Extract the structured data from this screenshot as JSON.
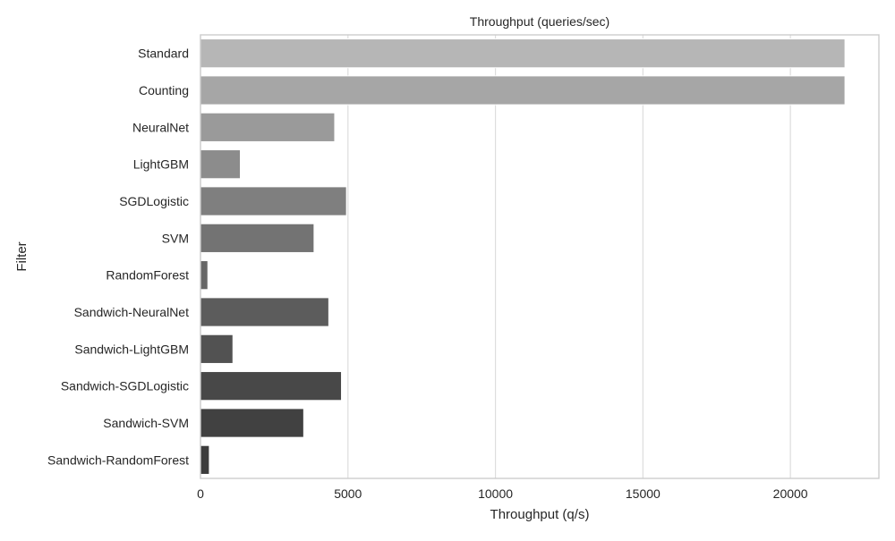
{
  "chart_data": {
    "type": "bar",
    "orientation": "horizontal",
    "title": "Throughput (queries/sec)",
    "xlabel": "Throughput (q/s)",
    "ylabel": "Filter",
    "categories": [
      "Standard",
      "Counting",
      "NeuralNet",
      "LightGBM",
      "SGDLogistic",
      "SVM",
      "RandomForest",
      "Sandwich-NeuralNet",
      "Sandwich-LightGBM",
      "Sandwich-SGDLogistic",
      "Sandwich-SVM",
      "Sandwich-RandomForest"
    ],
    "values": [
      21850,
      21850,
      4550,
      1350,
      4950,
      3850,
      250,
      4350,
      1100,
      4780,
      3500,
      300
    ],
    "bar_colors": [
      "#b6b6b6",
      "#a6a6a6",
      "#9a9a9a",
      "#8c8c8c",
      "#7f7f7f",
      "#737373",
      "#676767",
      "#5c5c5c",
      "#525252",
      "#484848",
      "#414141",
      "#3c3c3c"
    ],
    "xlim": [
      0,
      23000
    ],
    "xticks": [
      0,
      5000,
      10000,
      15000,
      20000
    ],
    "xtick_labels": [
      "0",
      "5000",
      "10000",
      "15000",
      "20000"
    ],
    "grid": "vertical",
    "grid_color": "#dddddd",
    "axes_edge_color": "#cccccc",
    "legend": "none"
  }
}
